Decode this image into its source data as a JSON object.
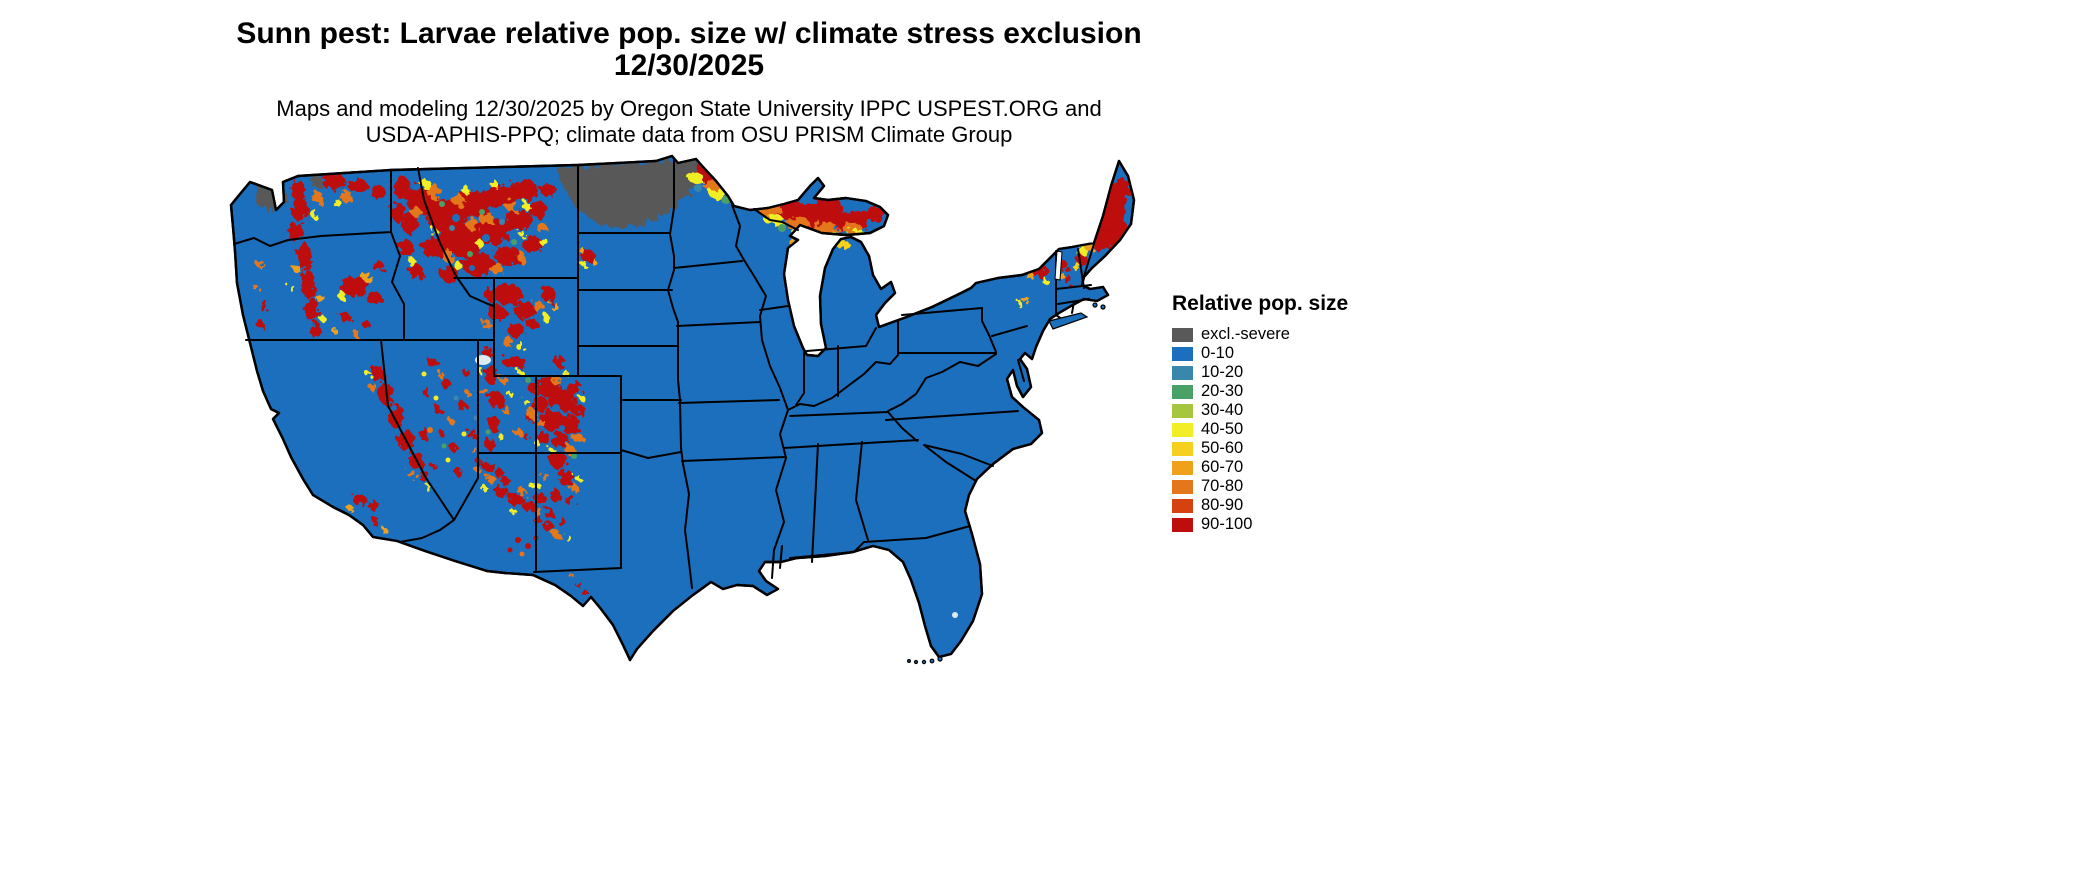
{
  "title": {
    "line1": "Sunn pest: Larvae relative pop. size w/ climate stress exclusion",
    "line2": "12/30/2025"
  },
  "subtitle": {
    "line1": "Maps and modeling 12/30/2025 by Oregon State University IPPC USPEST.ORG and",
    "line2": "USDA-APHIS-PPQ; climate data from OSU PRISM Climate Group"
  },
  "legend": {
    "title": "Relative pop. size",
    "items": [
      {
        "label": "excl.-severe",
        "color": "#595959"
      },
      {
        "label": "0-10",
        "color": "#1c6fbc"
      },
      {
        "label": "10-20",
        "color": "#3a87ae"
      },
      {
        "label": "20-30",
        "color": "#4aa168"
      },
      {
        "label": "30-40",
        "color": "#a6c640"
      },
      {
        "label": "40-50",
        "color": "#f2ee26"
      },
      {
        "label": "50-60",
        "color": "#f5d01e"
      },
      {
        "label": "60-70",
        "color": "#f0a11c"
      },
      {
        "label": "70-80",
        "color": "#e4761b"
      },
      {
        "label": "80-90",
        "color": "#d6420f"
      },
      {
        "label": "90-100",
        "color": "#bd0d0d"
      }
    ]
  },
  "map": {
    "background": "#ffffff",
    "outline_color": "#000000",
    "water_color": "#dfe9f1"
  }
}
